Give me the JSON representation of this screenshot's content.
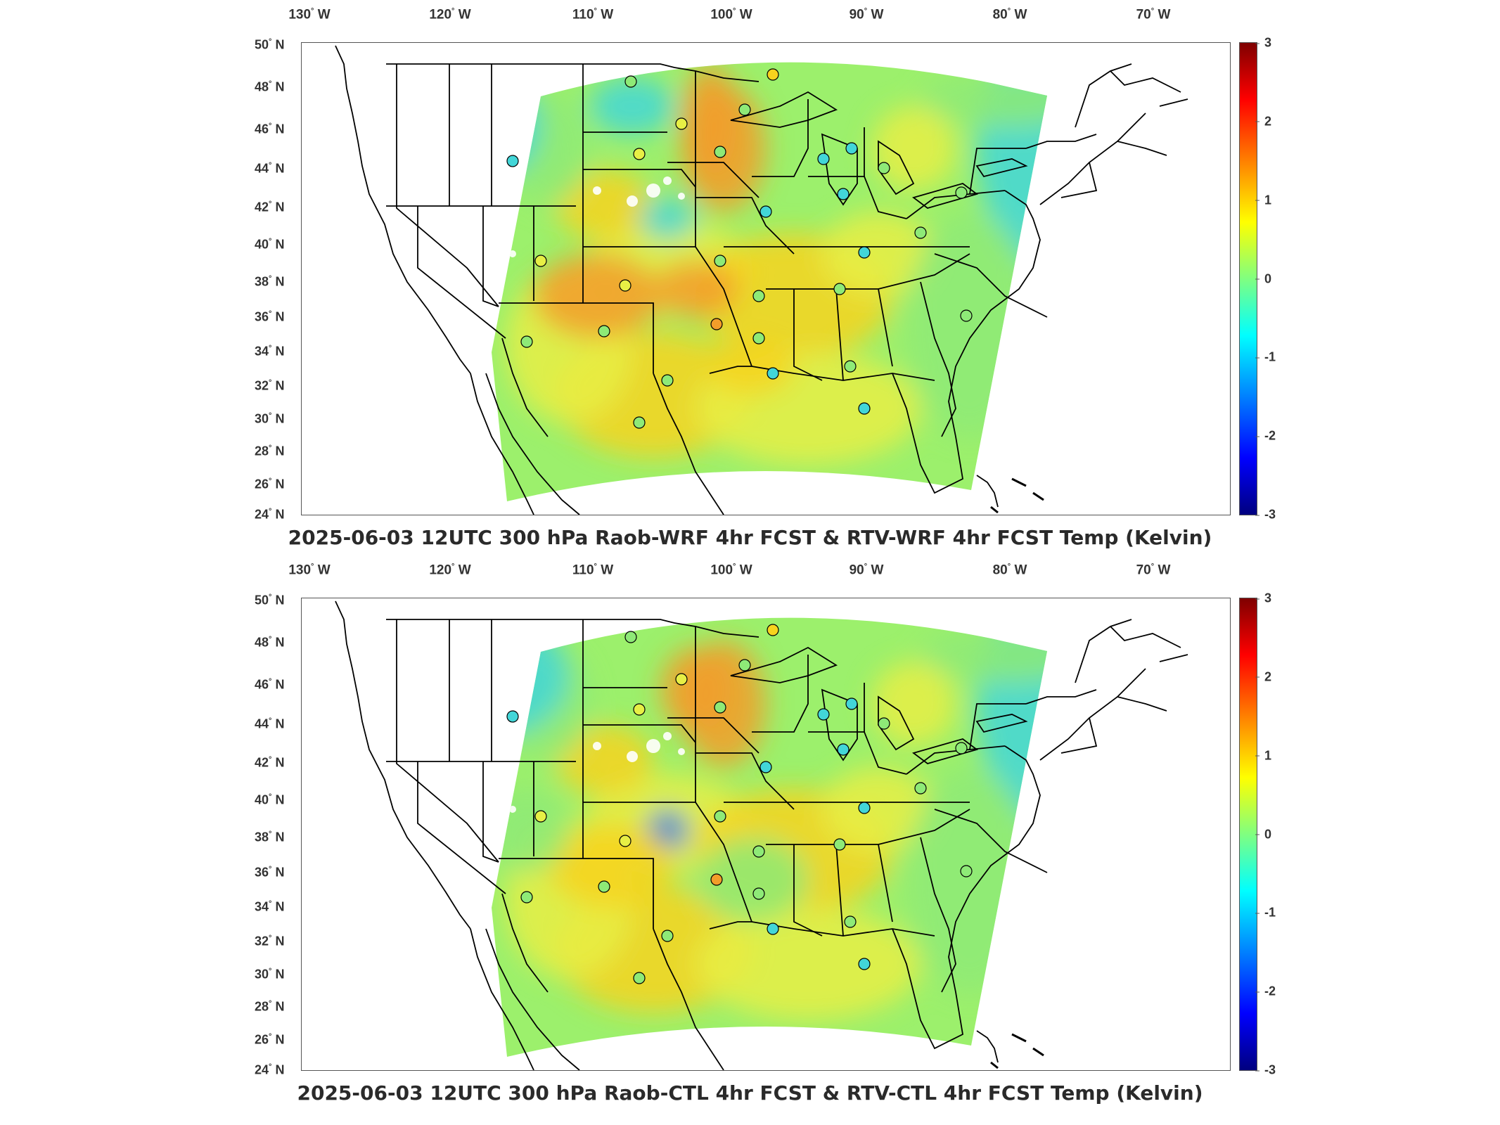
{
  "panels": [
    {
      "title": "2025-06-03 12UTC 300 hPa Raob-WRF 4hr FCST & RTV-WRF 4hr FCST Temp (Kelvin)",
      "variant": "wrf"
    },
    {
      "title": "2025-06-03 12UTC 300 hPa Raob-CTL 4hr FCST & RTV-CTL 4hr FCST Temp (Kelvin)",
      "variant": "ctl"
    }
  ],
  "lon_ticks": [
    "130",
    "120",
    "110",
    "100",
    "90",
    "80",
    "70"
  ],
  "lon_suffix": "W",
  "lat_ticks": [
    "50",
    "48",
    "46",
    "44",
    "42",
    "40",
    "38",
    "36",
    "34",
    "32",
    "30",
    "28",
    "26",
    "24"
  ],
  "lat_suffix": "N",
  "colorbar": {
    "ticks": [
      "3",
      "2",
      "1",
      "0",
      "-1",
      "-2",
      "-3"
    ],
    "range": [
      -3,
      3
    ],
    "colormap": "jet"
  },
  "raob_markers_count": 30
}
